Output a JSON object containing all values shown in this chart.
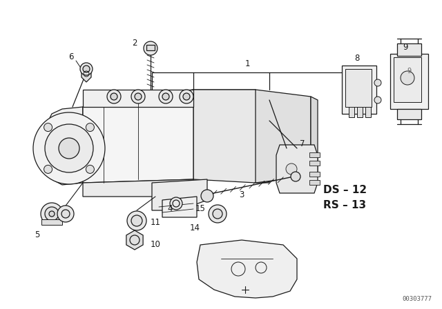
{
  "bg_color": "#ffffff",
  "line_color": "#1a1a1a",
  "fig_width": 6.4,
  "fig_height": 4.48,
  "dpi": 100,
  "ds_label": "DS – 12",
  "rs_label": "RS – 13",
  "watermark": "00303777"
}
